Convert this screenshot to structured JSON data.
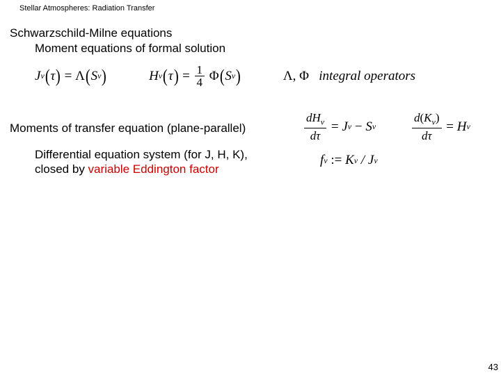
{
  "header": "Stellar Atmospheres:  Radiation Transfer",
  "title": "Schwarzschild-Milne equations",
  "subtitle": "Moment equations of formal solution",
  "eq1": {
    "lhs_sym": "J",
    "lhs_sub": "ν",
    "arg": "τ",
    "op": "Λ",
    "rhs_sym": "S",
    "rhs_sub": "ν"
  },
  "eq2": {
    "lhs_sym": "H",
    "lhs_sub": "ν",
    "arg": "τ",
    "frac_num": "1",
    "frac_den": "4",
    "op": "Φ",
    "rhs_sym": "S",
    "rhs_sub": "ν"
  },
  "ops": {
    "sym1": "Λ",
    "sym2": "Φ",
    "label": "integral operators"
  },
  "section2": "Moments of transfer equation (plane-parallel)",
  "body2_l1": "Differential equation system (for J, H, K),",
  "body2_l2a": "closed by ",
  "body2_l2b": "variable Eddington factor",
  "moment1": {
    "num_d": "d",
    "num_sym": "H",
    "num_sub": "ν",
    "den_d": "d",
    "den_sym": "τ",
    "r1_sym": "J",
    "r1_sub": "ν",
    "r2_sym": "S",
    "r2_sub": "ν"
  },
  "moment2": {
    "num_d": "d",
    "lparen": "(",
    "num_sym": "K",
    "num_sub": "ν",
    "rparen": ")",
    "den_d": "d",
    "den_sym": "τ",
    "r_sym": "H",
    "r_sub": "ν"
  },
  "edd": {
    "lhs_sym": "f",
    "lhs_sub": "ν",
    "coloneq": ":=",
    "r1_sym": "K",
    "r1_sub": "ν",
    "slash": "/",
    "r2_sym": "J",
    "r2_sub": "ν"
  },
  "pagenum": "43"
}
